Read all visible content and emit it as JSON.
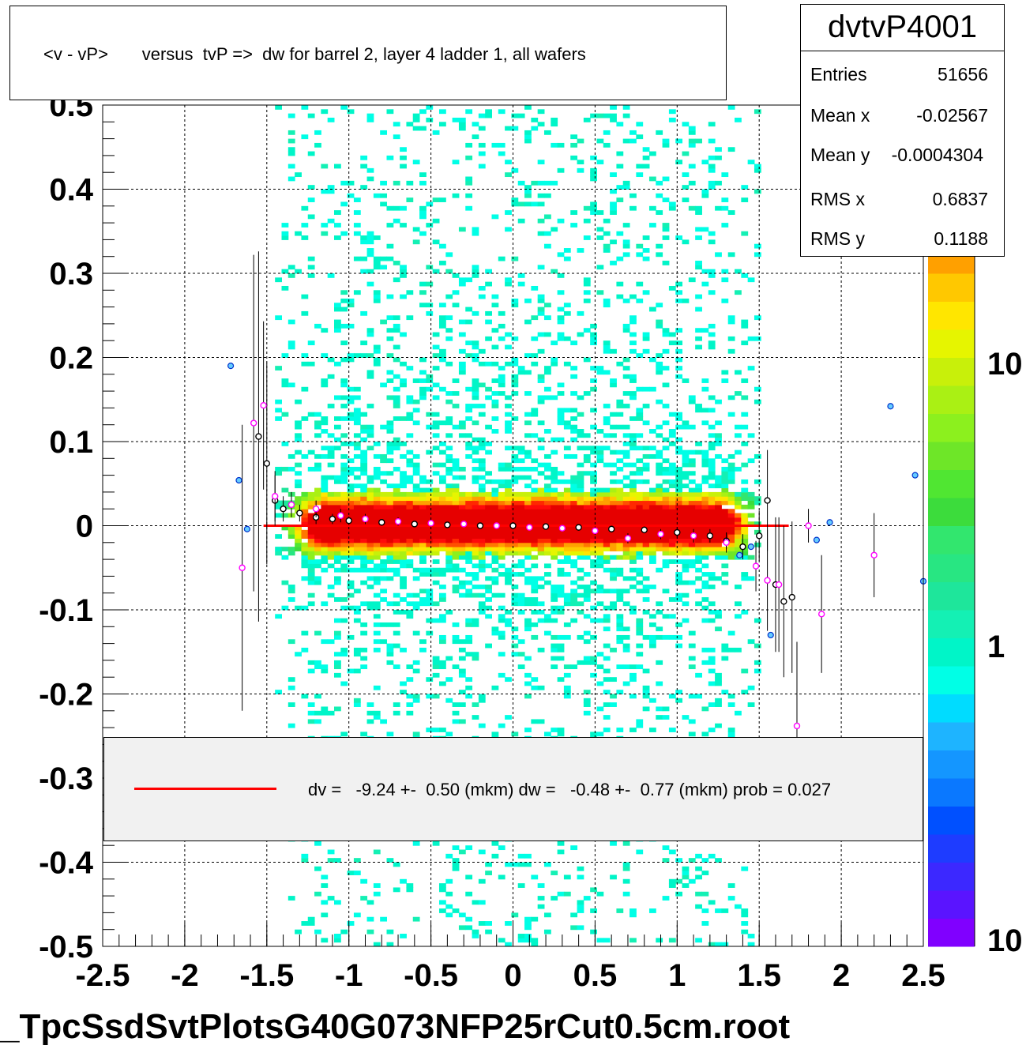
{
  "title": "<v - vP>       versus  tvP =>  dw for barrel 2, layer 4 ladder 1, all wafers",
  "stats": {
    "name": "dvtvP4001",
    "rows": [
      {
        "label": "Entries",
        "value": "51656"
      },
      {
        "label": "Mean x",
        "value": "-0.02567"
      },
      {
        "label": "Mean y",
        "value": "-0.0004304"
      },
      {
        "label": "RMS x",
        "value": "0.6837"
      },
      {
        "label": "RMS y",
        "value": "0.1188"
      }
    ]
  },
  "fit": {
    "text": "dv =   -9.24 +-  0.50 (mkm) dw =   -0.48 +-  0.77 (mkm) prob = 0.027",
    "line_color": "#ff0000"
  },
  "footer": "_TpcSsdSvtPlotsG40G073NFP25rCut0.5cm.root",
  "palette": {
    "labels": [
      "10",
      "1",
      "10"
    ],
    "colors": [
      "#8000ff",
      "#5a14ff",
      "#3c28ff",
      "#1e3cff",
      "#0050ff",
      "#0a78ff",
      "#1496ff",
      "#1eb4ff",
      "#00dcff",
      "#00ffe6",
      "#00f5c8",
      "#14f0b4",
      "#1ee69b",
      "#28e682",
      "#32e66e",
      "#3cdc3c",
      "#50e632",
      "#6ee628",
      "#8cf01e",
      "#aaf014",
      "#c8f00a",
      "#e6f500",
      "#ffe600",
      "#ffc800",
      "#ffa000",
      "#ff7800",
      "#ff5000",
      "#ff2800",
      "#ff0a0a",
      "#e60000"
    ]
  },
  "chart_data": {
    "type": "heatmap",
    "title": "<v - vP>       versus  tvP =>  dw for barrel 2, layer 4 ladder 1, all wafers",
    "xlabel": "",
    "ylabel": "",
    "xlim": [
      -2.5,
      2.5
    ],
    "ylim": [
      -0.5,
      0.5
    ],
    "x_ticks": [
      "-2.5",
      "-2",
      "-1.5",
      "-1",
      "-0.5",
      "0",
      "0.5",
      "1",
      "1.5",
      "2",
      "2.5"
    ],
    "y_ticks": [
      "-0.5",
      "-0.4",
      "-0.3",
      "-0.2",
      "-0.1",
      "0",
      "0.1",
      "0.2",
      "0.3",
      "0.4",
      "0.5"
    ],
    "z_scale": "log",
    "grid": true,
    "density": {
      "x_range": [
        -1.45,
        1.5
      ],
      "core_y_center": 0.0,
      "core_sigma": 0.02,
      "bin_width_x": 0.04,
      "bin_width_y": 0.005
    },
    "fit_line": {
      "x": [
        -1.52,
        1.68
      ],
      "y": [
        0.0,
        0.0
      ],
      "color": "#ff0000"
    },
    "profile_black": [
      {
        "x": -1.55,
        "y": 0.106,
        "err": 0.22
      },
      {
        "x": -1.5,
        "y": 0.074,
        "err": 0.12
      },
      {
        "x": -1.45,
        "y": 0.03,
        "err": 0.03
      },
      {
        "x": -1.4,
        "y": 0.02,
        "err": 0.015
      },
      {
        "x": -1.3,
        "y": 0.015,
        "err": 0.01
      },
      {
        "x": -1.2,
        "y": 0.01,
        "err": 0.008
      },
      {
        "x": -1.1,
        "y": 0.008,
        "err": 0.006
      },
      {
        "x": -1.0,
        "y": 0.006,
        "err": 0.005
      },
      {
        "x": -0.8,
        "y": 0.004,
        "err": 0.004
      },
      {
        "x": -0.6,
        "y": 0.002,
        "err": 0.003
      },
      {
        "x": -0.4,
        "y": 0.001,
        "err": 0.003
      },
      {
        "x": -0.2,
        "y": 0.0,
        "err": 0.003
      },
      {
        "x": 0.0,
        "y": 0.0,
        "err": 0.003
      },
      {
        "x": 0.2,
        "y": -0.001,
        "err": 0.003
      },
      {
        "x": 0.4,
        "y": -0.002,
        "err": 0.003
      },
      {
        "x": 0.6,
        "y": -0.004,
        "err": 0.004
      },
      {
        "x": 0.8,
        "y": -0.005,
        "err": 0.004
      },
      {
        "x": 1.0,
        "y": -0.008,
        "err": 0.006
      },
      {
        "x": 1.2,
        "y": -0.012,
        "err": 0.008
      },
      {
        "x": 1.3,
        "y": -0.018,
        "err": 0.01
      },
      {
        "x": 1.4,
        "y": -0.025,
        "err": 0.015
      },
      {
        "x": 1.5,
        "y": -0.012,
        "err": 0.03
      },
      {
        "x": 1.55,
        "y": 0.03,
        "err": 0.06
      },
      {
        "x": 1.6,
        "y": -0.07,
        "err": 0.08
      },
      {
        "x": 1.65,
        "y": -0.09,
        "err": 0.09
      },
      {
        "x": 1.7,
        "y": -0.085,
        "err": 0.09
      }
    ],
    "profile_magenta": [
      {
        "x": -1.65,
        "y": -0.05,
        "err": 0.17
      },
      {
        "x": -1.58,
        "y": 0.122,
        "err": 0.2
      },
      {
        "x": -1.52,
        "y": 0.143,
        "err": 0.1
      },
      {
        "x": -1.45,
        "y": 0.035,
        "err": 0.03
      },
      {
        "x": -1.35,
        "y": 0.025,
        "err": 0.015
      },
      {
        "x": -1.2,
        "y": 0.02,
        "err": 0.01
      },
      {
        "x": -1.05,
        "y": 0.012,
        "err": 0.008
      },
      {
        "x": -0.9,
        "y": 0.008,
        "err": 0.006
      },
      {
        "x": -0.7,
        "y": 0.005,
        "err": 0.005
      },
      {
        "x": -0.5,
        "y": 0.003,
        "err": 0.004
      },
      {
        "x": -0.3,
        "y": 0.002,
        "err": 0.004
      },
      {
        "x": -0.1,
        "y": 0.0,
        "err": 0.003
      },
      {
        "x": 0.1,
        "y": -0.002,
        "err": 0.003
      },
      {
        "x": 0.3,
        "y": -0.003,
        "err": 0.004
      },
      {
        "x": 0.5,
        "y": -0.006,
        "err": 0.005
      },
      {
        "x": 0.7,
        "y": -0.015,
        "err": 0.006
      },
      {
        "x": 0.9,
        "y": -0.01,
        "err": 0.006
      },
      {
        "x": 1.1,
        "y": -0.012,
        "err": 0.008
      },
      {
        "x": 1.3,
        "y": -0.02,
        "err": 0.012
      },
      {
        "x": 1.48,
        "y": -0.048,
        "err": 0.03
      },
      {
        "x": 1.55,
        "y": -0.065,
        "err": 0.06
      },
      {
        "x": 1.62,
        "y": -0.07,
        "err": 0.08
      },
      {
        "x": 1.73,
        "y": -0.238,
        "err": 0.1
      },
      {
        "x": 1.8,
        "y": 0.0,
        "err": 0.02
      },
      {
        "x": 1.88,
        "y": -0.105,
        "err": 0.07
      },
      {
        "x": 2.2,
        "y": -0.035,
        "err": 0.05
      }
    ],
    "profile_blue": [
      {
        "x": -1.72,
        "y": 0.19
      },
      {
        "x": -1.67,
        "y": 0.054
      },
      {
        "x": -1.62,
        "y": -0.004
      },
      {
        "x": 1.57,
        "y": -0.13
      },
      {
        "x": 1.85,
        "y": -0.017
      },
      {
        "x": 1.93,
        "y": 0.004
      },
      {
        "x": 2.3,
        "y": 0.142
      },
      {
        "x": 2.45,
        "y": 0.06
      },
      {
        "x": 2.5,
        "y": -0.066
      },
      {
        "x": 1.38,
        "y": -0.035
      },
      {
        "x": 1.45,
        "y": -0.025
      }
    ]
  }
}
